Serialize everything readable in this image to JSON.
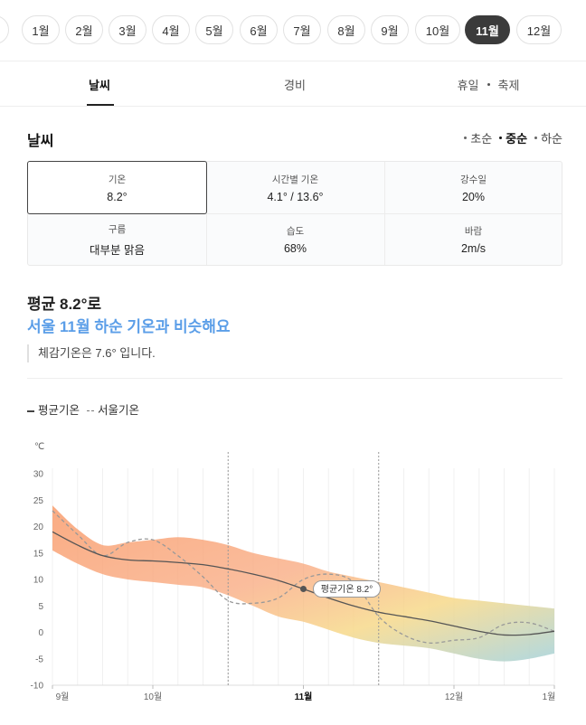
{
  "months": [
    {
      "label": "1월",
      "active": false
    },
    {
      "label": "2월",
      "active": false
    },
    {
      "label": "3월",
      "active": false
    },
    {
      "label": "4월",
      "active": false
    },
    {
      "label": "5월",
      "active": false
    },
    {
      "label": "6월",
      "active": false
    },
    {
      "label": "7월",
      "active": false
    },
    {
      "label": "8월",
      "active": false
    },
    {
      "label": "9월",
      "active": false
    },
    {
      "label": "10월",
      "active": false
    },
    {
      "label": "11월",
      "active": true
    },
    {
      "label": "12월",
      "active": false
    }
  ],
  "tabs": {
    "weather": "날씨",
    "expense": "경비",
    "holiday": "휴일",
    "festival": "축제"
  },
  "section": {
    "title": "날씨",
    "periods": [
      "초순",
      "중순",
      "하순"
    ],
    "selected_period": "중순"
  },
  "stats": {
    "temp_label": "기온",
    "temp_value": "8.2°",
    "hourly_label": "시간별 기온",
    "hourly_value": "4.1° / 13.6°",
    "rain_label": "강수일",
    "rain_value": "20%",
    "cloud_label": "구름",
    "cloud_value": "대부분 맑음",
    "humid_label": "습도",
    "humid_value": "68%",
    "wind_label": "바람",
    "wind_value": "2m/s"
  },
  "headline": {
    "line1": "평균 8.2°로",
    "line2": "서울 11월 하순 기온과 비슷해요",
    "feels": "체감기온은 7.6° 입니다."
  },
  "legend": {
    "avg": "평균기온",
    "seoul": "서울기온"
  },
  "colors": {
    "accent_blue": "#5b9ee8",
    "active_pill": "#3b3b3b",
    "band_warm": "#f9a77c",
    "band_mid": "#f7d98a",
    "band_cool": "#a9d4dc"
  },
  "chart_data": {
    "type": "area",
    "unit": "℃",
    "ylim": [
      -10,
      30
    ],
    "yticks": [
      30,
      25,
      20,
      15,
      10,
      5,
      0,
      -5,
      -10
    ],
    "xlabels": [
      {
        "label": "9월",
        "pos": 0.0,
        "current": false
      },
      {
        "label": "10월",
        "pos": 2.0,
        "current": false
      },
      {
        "label": "11월",
        "pos": 5.0,
        "current": true
      },
      {
        "label": "12월",
        "pos": 8.0,
        "current": false
      },
      {
        "label": "1월",
        "pos": 10.0,
        "current": false
      }
    ],
    "highlight_range": [
      3.5,
      6.5
    ],
    "series": [
      {
        "name": "평균기온",
        "style": "solid",
        "x": [
          0,
          0.5,
          1,
          1.5,
          2,
          2.5,
          3,
          3.5,
          4,
          4.5,
          5,
          5.5,
          6,
          6.5,
          7,
          7.5,
          8,
          8.5,
          9,
          9.5,
          10
        ],
        "values": [
          19,
          16.5,
          14.5,
          13.7,
          13.5,
          13.2,
          12.8,
          12,
          11,
          9.8,
          8.2,
          6.5,
          5,
          3.8,
          3,
          2.2,
          1.2,
          0.2,
          -0.5,
          -0.4,
          0.2
        ]
      },
      {
        "name": "서울기온",
        "style": "dashed",
        "x": [
          0,
          0.5,
          1,
          1.5,
          2,
          2.5,
          3,
          3.5,
          4,
          4.5,
          5,
          5.5,
          6,
          6.5,
          7,
          7.5,
          8,
          8.5,
          9,
          9.5,
          10
        ],
        "values": [
          23,
          18.5,
          14.5,
          17,
          17.5,
          14.5,
          10.5,
          6,
          5.5,
          6.5,
          10,
          11,
          9.5,
          3,
          -0.5,
          -2,
          -1.5,
          -1,
          1.5,
          1.8,
          0.2
        ]
      },
      {
        "name": "upper",
        "style": "band",
        "x": [
          0,
          0.5,
          1,
          1.5,
          2,
          2.5,
          3,
          3.5,
          4,
          4.5,
          5,
          5.5,
          6,
          6.5,
          7,
          7.5,
          8,
          8.5,
          9,
          9.5,
          10
        ],
        "values": [
          24,
          19.5,
          16.5,
          17,
          17.5,
          18,
          17.5,
          16.5,
          15,
          14,
          13,
          11.5,
          10.5,
          9.5,
          8.5,
          7.5,
          6.5,
          6,
          5.5,
          5,
          4.5
        ]
      },
      {
        "name": "lower",
        "style": "band",
        "x": [
          0,
          0.5,
          1,
          1.5,
          2,
          2.5,
          3,
          3.5,
          4,
          4.5,
          5,
          5.5,
          6,
          6.5,
          7,
          7.5,
          8,
          8.5,
          9,
          9.5,
          10
        ],
        "values": [
          15.5,
          13,
          11,
          10,
          9.5,
          9,
          8.5,
          7,
          5,
          3,
          2,
          0.5,
          -1,
          -2,
          -2.5,
          -3,
          -4,
          -5,
          -5.5,
          -5,
          -4
        ]
      }
    ],
    "marker": {
      "label": "평균기온 8.2°",
      "x": 5,
      "value": 8.2
    }
  }
}
